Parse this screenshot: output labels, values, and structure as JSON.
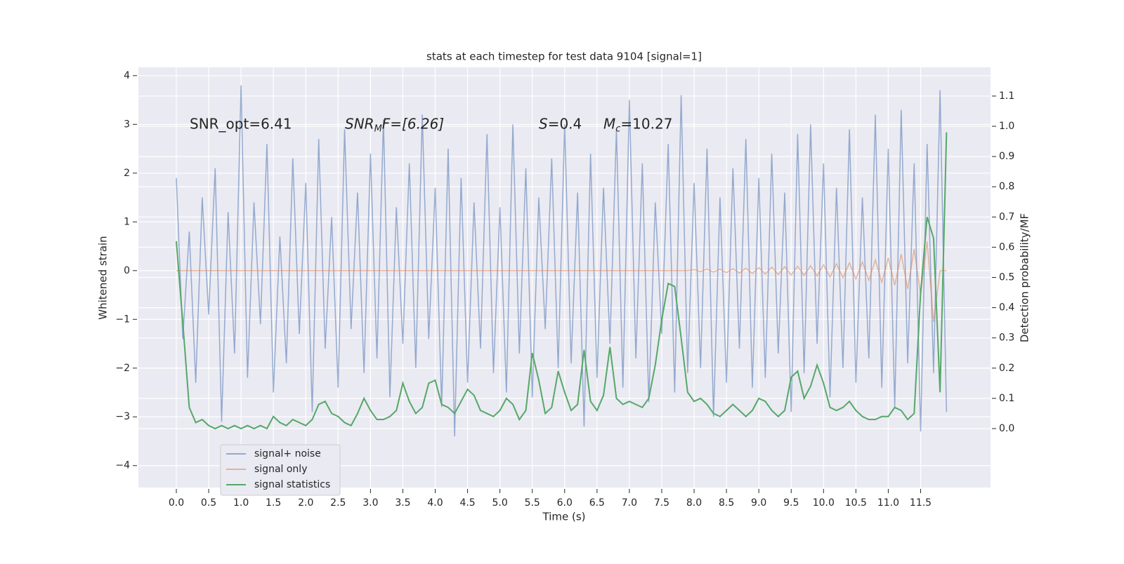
{
  "chart_data": {
    "type": "line",
    "title": "stats at each timestep for test data 9104 [signal=1]",
    "x_label": "Time (s)",
    "y_label": "Whitened strain",
    "y2_label": "Detection probability/MF",
    "annotations": [
      {
        "base": "SNR_opt=6.41"
      },
      {
        "base": "SNR",
        "sub": "M",
        "tail": "F=[6.26]"
      },
      {
        "base": "S",
        "tail": "=0.4"
      },
      {
        "base": "M",
        "sub": "c",
        "tail": "=10.27"
      }
    ],
    "x": [
      0,
      0.1,
      0.2,
      0.3,
      0.4,
      0.5,
      0.6,
      0.7,
      0.8,
      0.9,
      1,
      1.1,
      1.2,
      1.3,
      1.4,
      1.5,
      1.6,
      1.7,
      1.8,
      1.9,
      2,
      2.1,
      2.2,
      2.3,
      2.4,
      2.5,
      2.6,
      2.7,
      2.8,
      2.9,
      3,
      3.1,
      3.2,
      3.3,
      3.4,
      3.5,
      3.6,
      3.7,
      3.8,
      3.9,
      4,
      4.1,
      4.2,
      4.3,
      4.4,
      4.5,
      4.6,
      4.7,
      4.8,
      4.9,
      5,
      5.1,
      5.2,
      5.3,
      5.4,
      5.5,
      5.6,
      5.7,
      5.8,
      5.9,
      6,
      6.1,
      6.2,
      6.3,
      6.4,
      6.5,
      6.6,
      6.7,
      6.8,
      6.9,
      7,
      7.1,
      7.2,
      7.3,
      7.4,
      7.5,
      7.6,
      7.7,
      7.8,
      7.9,
      8,
      8.1,
      8.2,
      8.3,
      8.4,
      8.5,
      8.6,
      8.7,
      8.8,
      8.9,
      9,
      9.1,
      9.2,
      9.3,
      9.4,
      9.5,
      9.6,
      9.7,
      9.8,
      9.9,
      10,
      10.1,
      10.2,
      10.3,
      10.4,
      10.5,
      10.6,
      10.7,
      10.8,
      10.9,
      11,
      11.1,
      11.2,
      11.3,
      11.4,
      11.5,
      11.6,
      11.7,
      11.8,
      11.9
    ],
    "series": [
      {
        "name": "signal+ noise",
        "color": "#4c72b0",
        "values": [
          1.9,
          -1.4,
          0.8,
          -2.3,
          1.5,
          -0.9,
          2.1,
          -3.1,
          1.2,
          -1.7,
          3.8,
          -2.2,
          1.4,
          -1.1,
          2.6,
          -2.5,
          0.7,
          -1.9,
          2.3,
          -1.3,
          1.8,
          -2.9,
          2.7,
          -1.6,
          1.1,
          -2.4,
          2.9,
          -1.2,
          1.6,
          -2.1,
          2.4,
          -1.8,
          3.1,
          -2.6,
          1.3,
          -1.5,
          2.2,
          -2.0,
          3.2,
          -1.4,
          1.7,
          -2.8,
          2.5,
          -3.4,
          1.9,
          -2.3,
          1.4,
          -1.6,
          2.8,
          -2.1,
          1.3,
          -2.5,
          3.0,
          -1.7,
          2.1,
          -2.6,
          1.5,
          -1.2,
          2.3,
          -2.0,
          3.0,
          -1.9,
          1.6,
          -3.2,
          2.4,
          -2.2,
          1.7,
          -1.5,
          2.9,
          -2.4,
          3.5,
          -1.8,
          2.2,
          -2.7,
          1.4,
          -1.3,
          2.6,
          -2.5,
          3.6,
          -2.1,
          1.8,
          -2.0,
          2.5,
          -3.0,
          1.5,
          -2.3,
          2.1,
          -1.6,
          2.7,
          -2.4,
          1.9,
          -2.2,
          2.4,
          -1.7,
          1.6,
          -2.9,
          2.8,
          -2.1,
          3.0,
          -1.5,
          2.2,
          -2.6,
          1.7,
          -2.0,
          2.9,
          -2.3,
          1.5,
          -1.8,
          3.2,
          -2.4,
          2.5,
          -2.8,
          3.3,
          -1.9,
          2.2,
          -3.3,
          2.6,
          -2.1,
          3.7,
          -2.9
        ]
      },
      {
        "name": "signal only",
        "color": "#dd8452",
        "values": [
          0,
          0,
          0,
          0,
          0,
          0,
          0,
          0,
          0,
          0,
          0,
          0,
          0,
          0,
          0,
          0,
          0,
          0,
          0,
          0,
          0,
          0,
          0,
          0,
          0,
          0,
          0,
          0,
          0,
          0,
          0,
          0,
          0,
          0,
          0,
          0,
          0,
          0,
          0,
          0,
          0,
          0,
          0,
          0,
          0,
          0,
          0,
          0,
          0,
          0,
          0,
          0,
          0,
          0,
          0,
          0,
          0,
          0,
          0,
          0,
          0,
          0,
          0,
          0,
          0,
          0,
          0,
          0,
          0,
          0,
          0,
          0,
          0,
          0,
          0,
          0,
          0,
          0,
          0,
          0,
          0.02,
          -0.02,
          0.03,
          -0.03,
          0.03,
          -0.04,
          0.04,
          -0.05,
          0.05,
          -0.06,
          0.06,
          -0.07,
          0.07,
          -0.08,
          0.08,
          -0.09,
          0.09,
          -0.1,
          0.1,
          -0.11,
          0.12,
          -0.13,
          0.14,
          -0.15,
          0.16,
          -0.17,
          0.18,
          -0.2,
          0.22,
          -0.24,
          0.26,
          -0.3,
          0.34,
          -0.38,
          0.44,
          -0.5,
          0.6,
          -1.05,
          0,
          0
        ]
      },
      {
        "name": "signal statistics",
        "color": "#55a868",
        "axis": "y2",
        "values": [
          0.62,
          0.35,
          0.07,
          0.02,
          0.03,
          0.01,
          0.0,
          0.01,
          0.0,
          0.01,
          0.0,
          0.01,
          0.0,
          0.01,
          0.0,
          0.04,
          0.02,
          0.01,
          0.03,
          0.02,
          0.01,
          0.03,
          0.08,
          0.09,
          0.05,
          0.04,
          0.02,
          0.01,
          0.05,
          0.1,
          0.06,
          0.03,
          0.03,
          0.04,
          0.06,
          0.15,
          0.09,
          0.05,
          0.07,
          0.15,
          0.16,
          0.08,
          0.07,
          0.05,
          0.09,
          0.13,
          0.11,
          0.06,
          0.05,
          0.04,
          0.06,
          0.1,
          0.08,
          0.03,
          0.06,
          0.25,
          0.16,
          0.05,
          0.07,
          0.19,
          0.12,
          0.06,
          0.08,
          0.26,
          0.09,
          0.06,
          0.11,
          0.27,
          0.1,
          0.08,
          0.09,
          0.08,
          0.07,
          0.1,
          0.21,
          0.36,
          0.48,
          0.47,
          0.3,
          0.12,
          0.09,
          0.1,
          0.08,
          0.05,
          0.04,
          0.06,
          0.08,
          0.06,
          0.04,
          0.06,
          0.1,
          0.09,
          0.06,
          0.04,
          0.06,
          0.17,
          0.19,
          0.1,
          0.14,
          0.21,
          0.15,
          0.07,
          0.06,
          0.07,
          0.09,
          0.06,
          0.04,
          0.03,
          0.03,
          0.04,
          0.04,
          0.07,
          0.06,
          0.03,
          0.05,
          0.45,
          0.7,
          0.63,
          0.12,
          0.98
        ]
      }
    ],
    "xlim": [
      -0.586,
      12.58
    ],
    "xticks": [
      {
        "value": 0,
        "label": "0.0"
      },
      0.5,
      {
        "value": 1,
        "label": "1.0"
      },
      1.5,
      {
        "value": 2,
        "label": "2.0"
      },
      2.5,
      {
        "value": 3,
        "label": "3.0"
      },
      3.5,
      {
        "value": 4,
        "label": "4.0"
      },
      4.5,
      {
        "value": 5,
        "label": "5.0"
      },
      5.5,
      {
        "value": 6,
        "label": "6.0"
      },
      6.5,
      {
        "value": 7,
        "label": "7.0"
      },
      7.5,
      {
        "value": 8,
        "label": "8.0"
      },
      8.5,
      {
        "value": 9,
        "label": "9.0"
      },
      9.5,
      {
        "value": 10,
        "label": "10.0"
      },
      10.5,
      {
        "value": 11,
        "label": "11.0"
      },
      11.5
    ],
    "ylim": [
      -4.45,
      4.17
    ],
    "yticks": [
      {
        "value": -4,
        "label": "−4"
      },
      {
        "value": -3,
        "label": "−3"
      },
      {
        "value": -2,
        "label": "−2"
      },
      {
        "value": -1,
        "label": "−1"
      },
      0,
      1,
      2,
      3,
      4
    ],
    "y2lim": [
      -0.195,
      1.195
    ],
    "y2ticks": [
      {
        "value": 0,
        "label": "0.0"
      },
      0.1,
      0.2,
      0.3,
      0.4,
      0.5,
      0.6,
      0.7,
      0.8,
      0.9,
      {
        "value": 1,
        "label": "1.0"
      },
      1.1
    ],
    "grid": true,
    "legend": "lower left"
  }
}
